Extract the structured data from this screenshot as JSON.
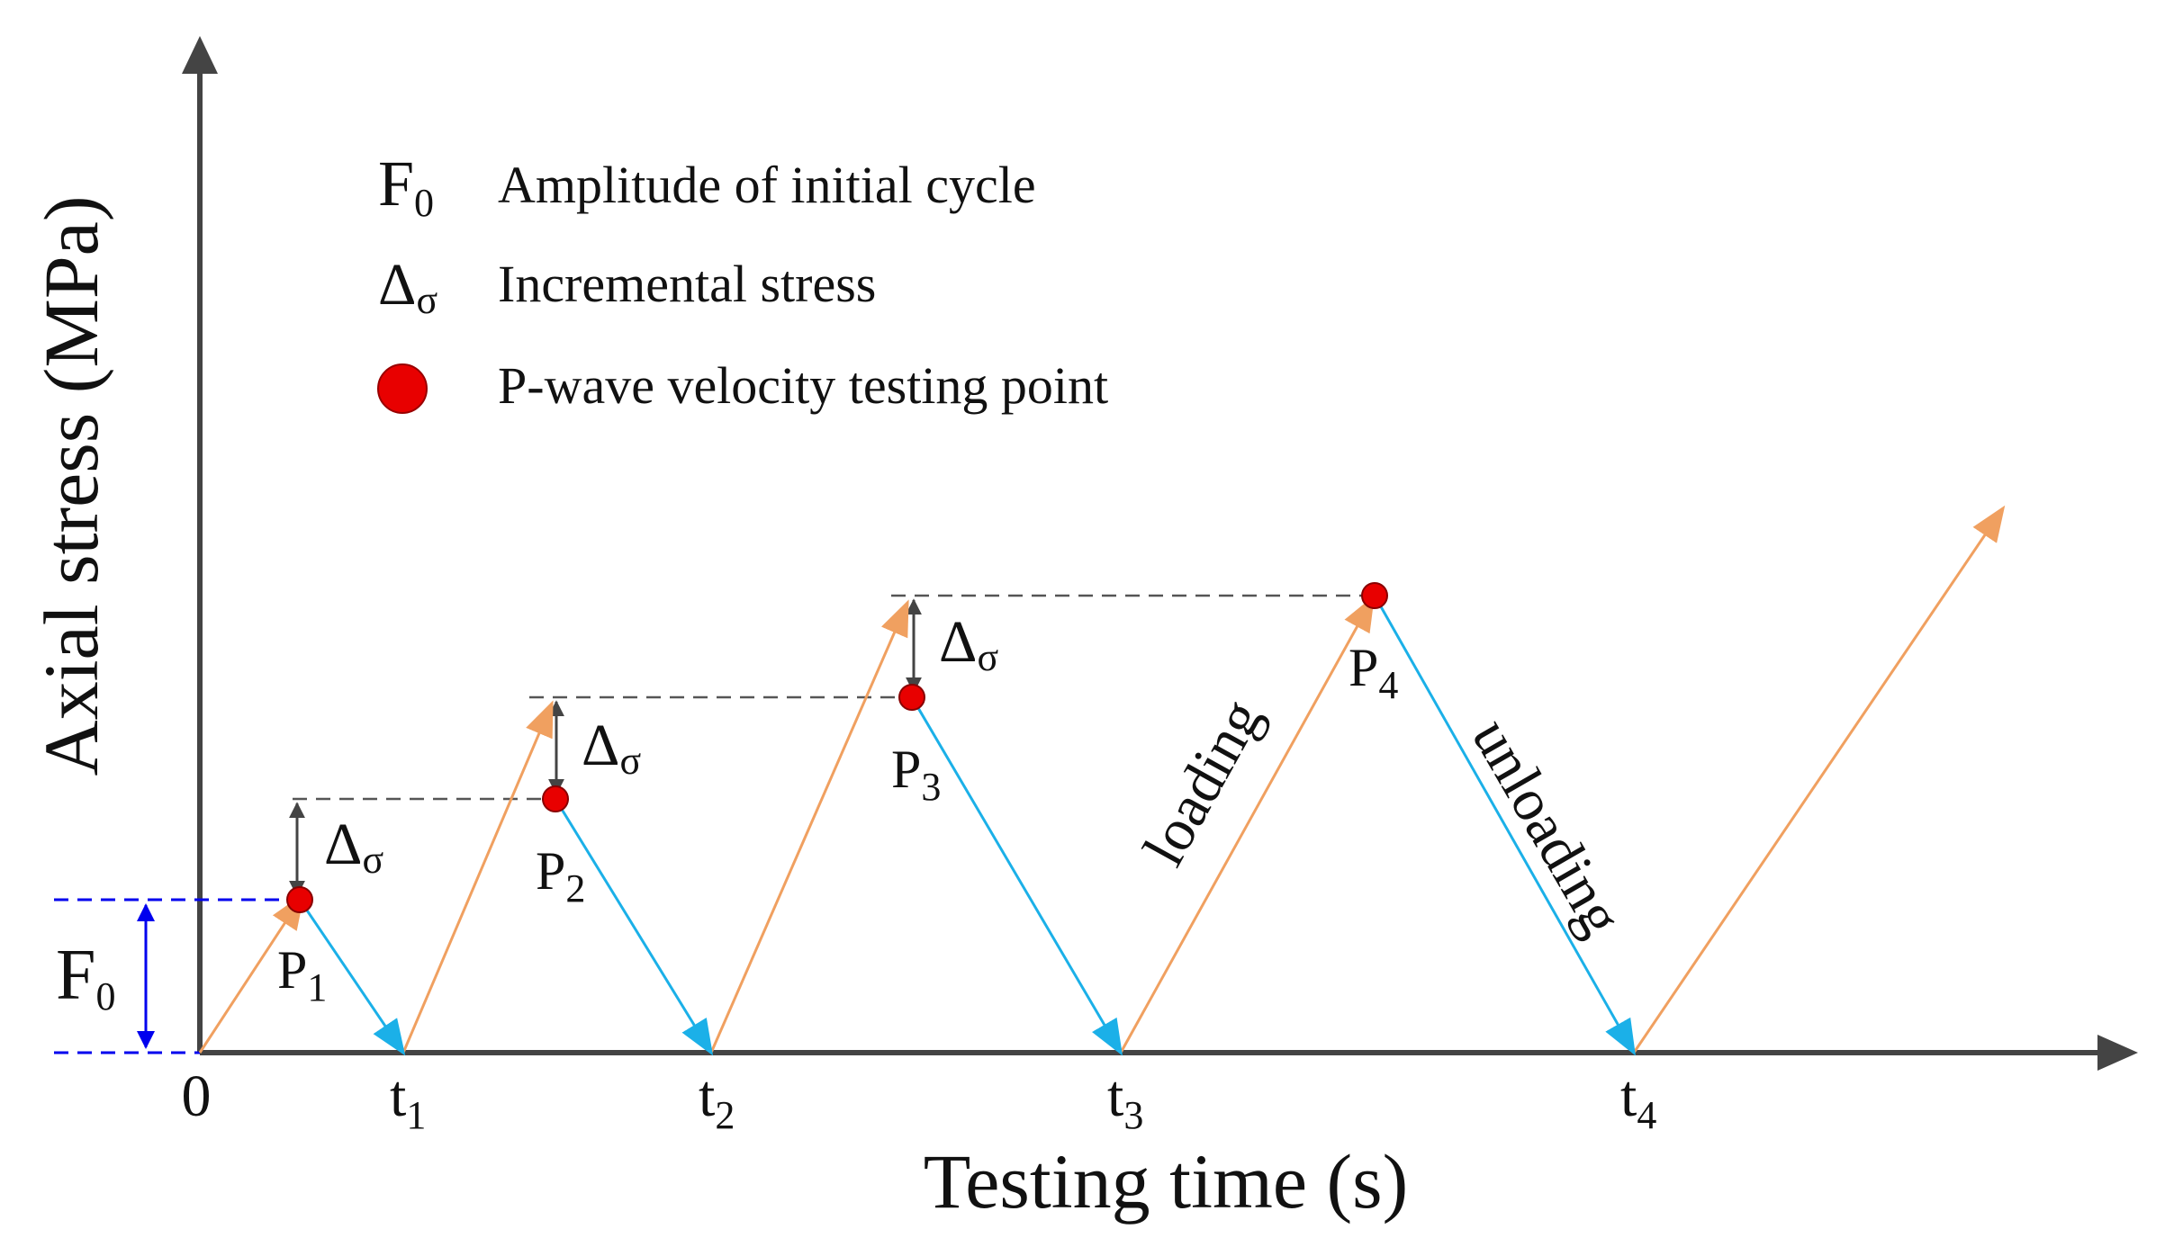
{
  "axes": {
    "y_label": "Axial stress (MPa)",
    "x_label": "Testing time (s)",
    "origin_label": "0"
  },
  "ticks": [
    {
      "base": "t",
      "sub": "1"
    },
    {
      "base": "t",
      "sub": "2"
    },
    {
      "base": "t",
      "sub": "3"
    },
    {
      "base": "t",
      "sub": "4"
    }
  ],
  "legend": [
    {
      "symbol_base": "F",
      "symbol_sub": "0",
      "text": "Amplitude of initial cycle"
    },
    {
      "symbol_base": "Δ",
      "symbol_sub": "σ",
      "text": "Incremental stress"
    },
    {
      "symbol_type": "red-dot",
      "text": "P-wave velocity testing point"
    }
  ],
  "points": [
    {
      "base": "P",
      "sub": "1"
    },
    {
      "base": "P",
      "sub": "2"
    },
    {
      "base": "P",
      "sub": "3"
    },
    {
      "base": "P",
      "sub": "4"
    }
  ],
  "increment_label": {
    "base": "Δ",
    "sub": "σ"
  },
  "f0_label": {
    "base": "F",
    "sub": "0"
  },
  "annotations": {
    "loading": "loading",
    "unloading": "unloading"
  },
  "colors": {
    "axis": "#444444",
    "loading": "#F0A060",
    "unloading": "#1BB0E8",
    "point": "#E80000",
    "f0_marker": "#0000EE",
    "dashed": "#555555"
  }
}
